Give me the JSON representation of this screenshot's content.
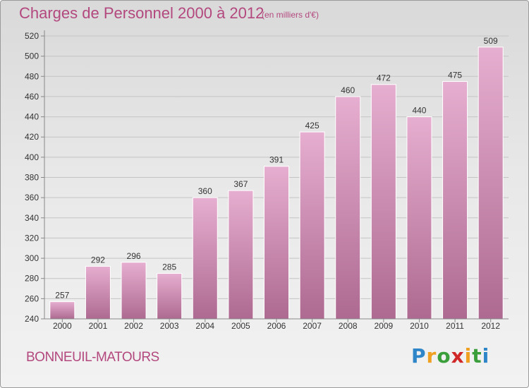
{
  "header": {
    "title": "Charges de Personnel 2000 à 2012",
    "subtitle": "(en milliers d'€)"
  },
  "footer": {
    "city": "BONNEUIL-MATOURS",
    "logo": {
      "p": "P",
      "r": "r",
      "o": "o",
      "x": "x",
      "i1": "i",
      "t": "t",
      "i2": "i"
    }
  },
  "colors": {
    "title": "#b3487e",
    "bar_top": "#e6aed0",
    "bar_bottom": "#ae6a91",
    "axis": "#888888",
    "grid": "#c4c4c4"
  },
  "chart_data": {
    "type": "bar",
    "categories": [
      "2000",
      "2001",
      "2002",
      "2003",
      "2004",
      "2005",
      "2006",
      "2007",
      "2008",
      "2009",
      "2010",
      "2011",
      "2012"
    ],
    "values": [
      257,
      292,
      296,
      285,
      360,
      367,
      391,
      425,
      460,
      472,
      440,
      475,
      509
    ],
    "yticks": [
      240,
      260,
      280,
      300,
      320,
      340,
      360,
      380,
      400,
      420,
      440,
      460,
      480,
      500,
      520
    ],
    "ylim": [
      240,
      520
    ],
    "grid": true,
    "title": "Charges de Personnel 2000 à 2012",
    "xlabel": "",
    "ylabel": ""
  }
}
